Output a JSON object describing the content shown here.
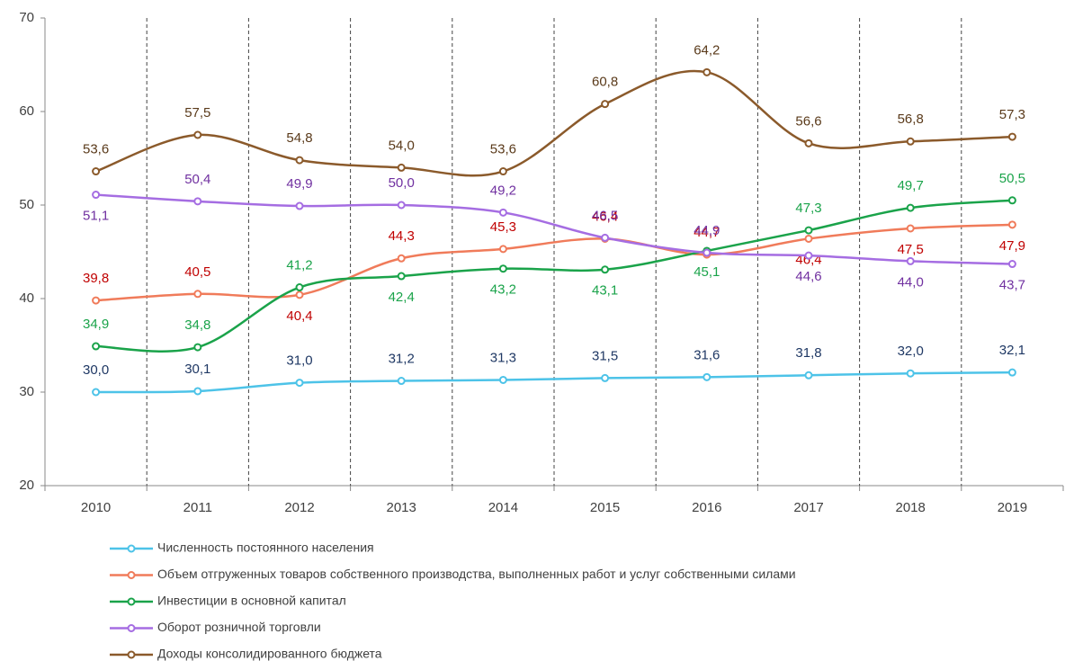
{
  "chart_data": {
    "type": "line",
    "categories": [
      "2010",
      "2011",
      "2012",
      "2013",
      "2014",
      "2015",
      "2016",
      "2017",
      "2018",
      "2019"
    ],
    "ylim": [
      20,
      70
    ],
    "yticks": [
      20,
      30,
      40,
      50,
      60,
      70
    ],
    "series": [
      {
        "name": "Численность постоянного населения",
        "color": "#4dc3e8",
        "label_color": "#1f3864",
        "values": [
          30.0,
          30.1,
          31.0,
          31.2,
          31.3,
          31.5,
          31.6,
          31.8,
          32.0,
          32.1
        ],
        "value_labels": [
          "30,0",
          "30,1",
          "31,0",
          "31,2",
          "31,3",
          "31,5",
          "31,6",
          "31,8",
          "32,0",
          "32,1"
        ]
      },
      {
        "name": "Объем отгруженных товаров собственного производства, выполненных работ и услуг собственными силами",
        "color": "#f07b5a",
        "label_color": "#c00000",
        "values": [
          39.8,
          40.5,
          40.4,
          44.3,
          45.3,
          46.4,
          44.7,
          46.4,
          47.5,
          47.9
        ],
        "value_labels": [
          "39,8",
          "40,5",
          "40,4",
          "44,3",
          "45,3",
          "46,4",
          "44,7",
          "46,4",
          "47,5",
          "47,9"
        ]
      },
      {
        "name": "Инвестиции в основной капитал",
        "color": "#1aa34a",
        "label_color": "#1aa34a",
        "values": [
          34.9,
          34.8,
          41.2,
          42.4,
          43.2,
          43.1,
          45.1,
          47.3,
          49.7,
          50.5
        ],
        "value_labels": [
          "34,9",
          "34,8",
          "41,2",
          "42,4",
          "43,2",
          "43,1",
          "45,1",
          "47,3",
          "49,7",
          "50,5"
        ]
      },
      {
        "name": "Оборот розничной торговли",
        "color": "#a56de2",
        "label_color": "#7030a0",
        "values": [
          51.1,
          50.4,
          49.9,
          50.0,
          49.2,
          46.5,
          44.9,
          44.6,
          44.0,
          43.7
        ],
        "value_labels": [
          "51,1",
          "50,4",
          "49,9",
          "50,0",
          "49,2",
          "46,5",
          "44,9",
          "44,6",
          "44,0",
          "43,7"
        ]
      },
      {
        "name": "Доходы консолидированного бюджета",
        "color": "#8b5a2b",
        "label_color": "#5a3a1a",
        "values": [
          53.6,
          57.5,
          54.8,
          54.0,
          53.6,
          60.8,
          64.2,
          56.6,
          56.8,
          57.3
        ],
        "value_labels": [
          "53,6",
          "57,5",
          "54,8",
          "54,0",
          "53,6",
          "60,8",
          "64,2",
          "56,6",
          "56,8",
          "57,3"
        ]
      }
    ]
  }
}
